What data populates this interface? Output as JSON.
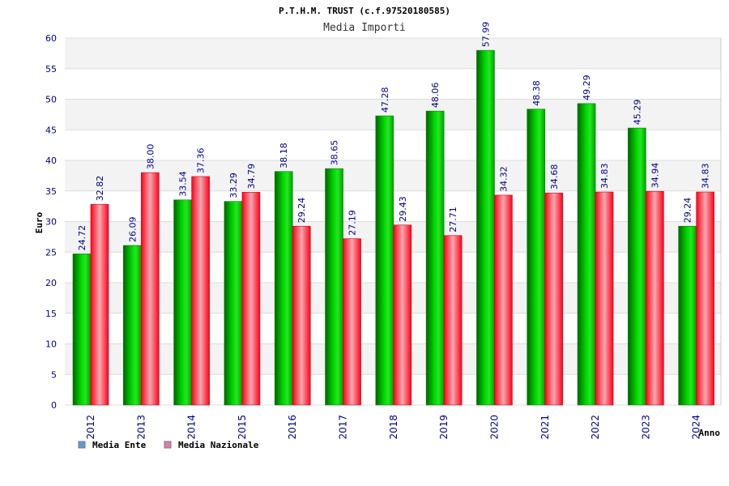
{
  "chart_data": {
    "type": "bar",
    "title": "P.T.H.M. TRUST (c.f.97520180585)",
    "subtitle": "Media Importi",
    "xlabel": "Anno",
    "ylabel": "Euro",
    "ylim": [
      0,
      60
    ],
    "yticks": [
      "0",
      "5",
      "10",
      "15",
      "20",
      "25",
      "30",
      "35",
      "40",
      "45",
      "50",
      "55",
      "60"
    ],
    "categories": [
      "2012",
      "2013",
      "2014",
      "2015",
      "2016",
      "2017",
      "2018",
      "2019",
      "2020",
      "2021",
      "2022",
      "2023",
      "2024"
    ],
    "series": [
      {
        "name": "Media Ente",
        "color": "#00c000",
        "legend_color": "#5b9bd5",
        "values": [
          24.72,
          26.09,
          33.54,
          33.29,
          38.18,
          38.65,
          47.28,
          48.06,
          57.99,
          48.38,
          49.29,
          45.29,
          29.24
        ],
        "labels": [
          "24.72",
          "26.09",
          "33.54",
          "33.29",
          "38.18",
          "38.65",
          "47.28",
          "48.06",
          "57.99",
          "48.38",
          "49.29",
          "45.29",
          "29.24"
        ]
      },
      {
        "name": "Media Nazionale",
        "color": "#e8001c",
        "legend_color": "#d97fb0",
        "values": [
          32.82,
          38.0,
          37.36,
          34.79,
          29.24,
          27.19,
          29.43,
          27.71,
          34.32,
          34.68,
          34.83,
          34.94,
          34.83
        ],
        "labels": [
          "32.82",
          "38.00",
          "37.36",
          "34.79",
          "29.24",
          "27.19",
          "29.43",
          "27.71",
          "34.32",
          "34.68",
          "34.83",
          "34.94",
          "34.83"
        ]
      }
    ],
    "grid": true,
    "legend_position": "bottom-left"
  }
}
